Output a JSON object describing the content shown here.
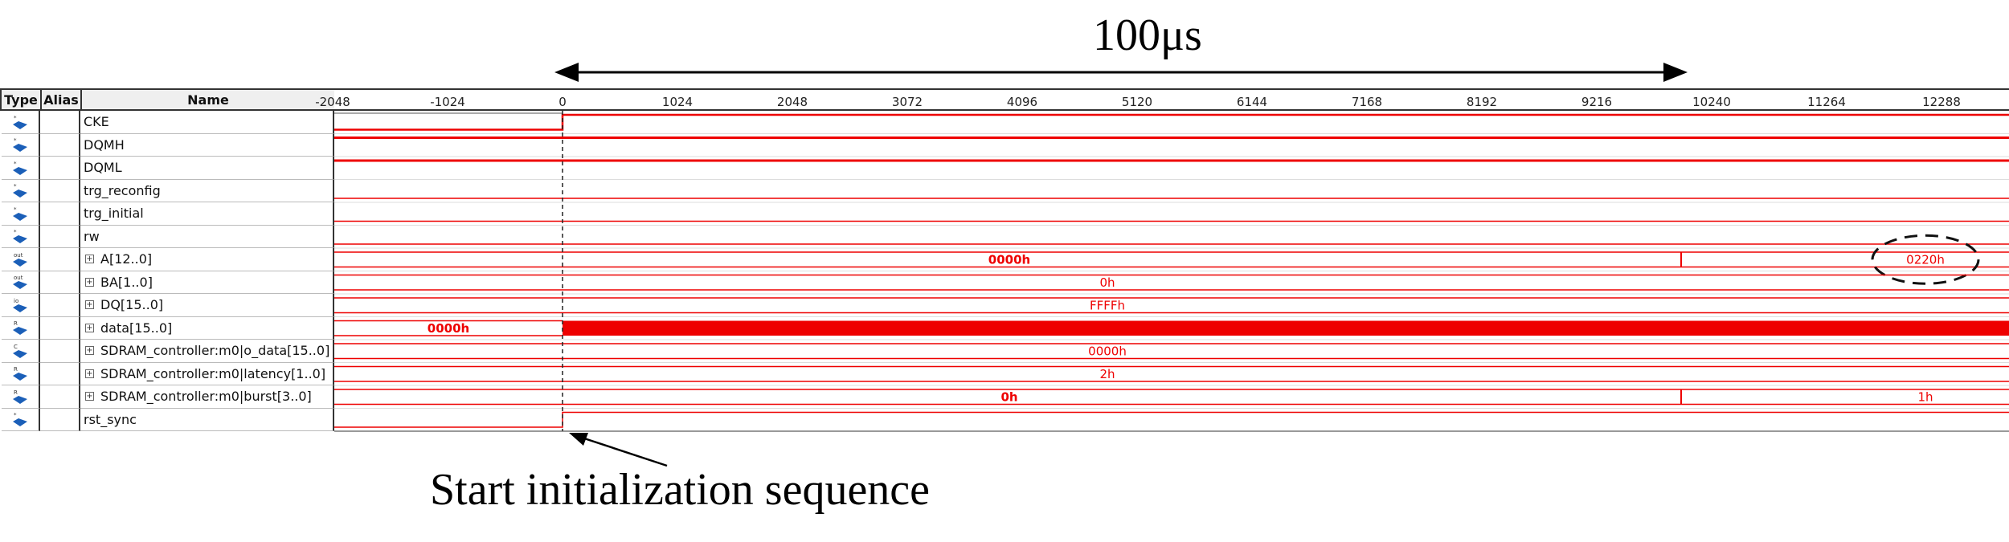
{
  "annotations": {
    "duration_label": "100μs",
    "start_label": "Start initialization sequence"
  },
  "table": {
    "headers": {
      "type": "Type",
      "alias": "Alias",
      "name": "Name"
    },
    "time_ticks": [
      "-2048",
      "-1024",
      "0",
      "1024",
      "2048",
      "3072",
      "4096",
      "5120",
      "6144",
      "7168",
      "8192",
      "9216",
      "10240",
      "11264",
      "12288"
    ],
    "signals": [
      {
        "name": "CKE",
        "type": "in",
        "bus": false
      },
      {
        "name": "DQMH",
        "type": "in",
        "bus": false
      },
      {
        "name": "DQML",
        "type": "in",
        "bus": false
      },
      {
        "name": "trg_reconfig",
        "type": "in",
        "bus": false
      },
      {
        "name": "trg_initial",
        "type": "in",
        "bus": false
      },
      {
        "name": "rw",
        "type": "in",
        "bus": false
      },
      {
        "name": "A[12..0]",
        "type": "out",
        "bus": true,
        "values": [
          "0000h",
          "0220h"
        ]
      },
      {
        "name": "BA[1..0]",
        "type": "out",
        "bus": true,
        "values": [
          "0h"
        ]
      },
      {
        "name": "DQ[15..0]",
        "type": "io",
        "bus": true,
        "values": [
          "FFFFh"
        ]
      },
      {
        "name": "data[15..0]",
        "type": "reg",
        "bus": true,
        "values": [
          "0000h"
        ]
      },
      {
        "name": "SDRAM_controller:m0|o_data[15..0]",
        "type": "comb",
        "bus": true,
        "values": [
          "0000h"
        ]
      },
      {
        "name": "SDRAM_controller:m0|latency[1..0]",
        "type": "reg",
        "bus": true,
        "values": [
          "2h"
        ]
      },
      {
        "name": "SDRAM_controller:m0|burst[3..0]",
        "type": "reg",
        "bus": true,
        "values": [
          "0h",
          "1h"
        ]
      },
      {
        "name": "rst_sync",
        "type": "in",
        "bus": false
      }
    ],
    "expander_symbol": "+"
  },
  "colors": {
    "wave": "#ee0000",
    "grid": "#333333",
    "header_bg": "#efefef"
  }
}
